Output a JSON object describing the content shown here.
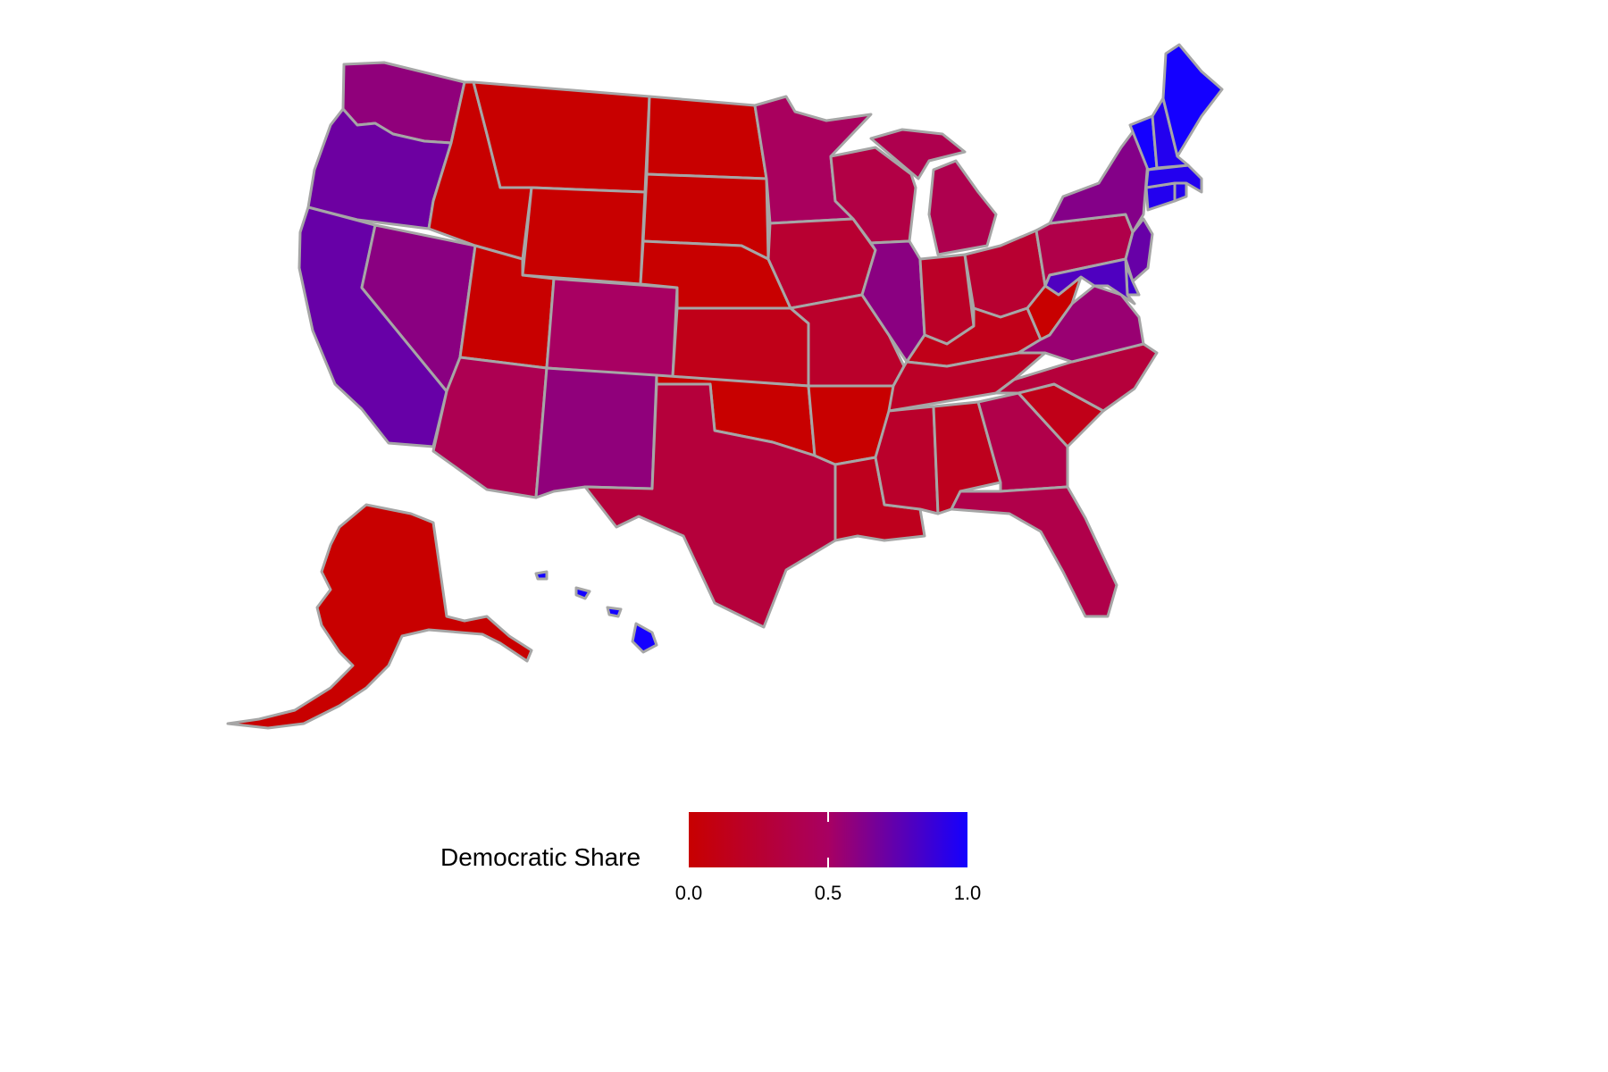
{
  "colors": {
    "low": "#c80000",
    "mid": "#a80062",
    "high": "#1400ff",
    "state_border": "#a6a6a6"
  },
  "legend": {
    "title": "Democratic Share",
    "ticks": [
      "0.0",
      "0.5",
      "1.0"
    ]
  },
  "scale": {
    "min": 0.0,
    "max": 1.0
  },
  "states": [
    {
      "name": "WA",
      "share": 0.58
    },
    {
      "name": "OR",
      "share": 0.7
    },
    {
      "name": "CA",
      "share": 0.72
    },
    {
      "name": "NV",
      "share": 0.6
    },
    {
      "name": "ID",
      "share": 0.0
    },
    {
      "name": "MT",
      "share": 0.0
    },
    {
      "name": "WY",
      "share": 0.0
    },
    {
      "name": "UT",
      "share": 0.0
    },
    {
      "name": "AZ",
      "share": 0.42
    },
    {
      "name": "CO",
      "share": 0.5
    },
    {
      "name": "NM",
      "share": 0.58
    },
    {
      "name": "ND",
      "share": 0.0
    },
    {
      "name": "SD",
      "share": 0.0
    },
    {
      "name": "NE",
      "share": 0.0
    },
    {
      "name": "KS",
      "share": 0.12
    },
    {
      "name": "OK",
      "share": 0.0
    },
    {
      "name": "TX",
      "share": 0.3
    },
    {
      "name": "MN",
      "share": 0.48
    },
    {
      "name": "IA",
      "share": 0.25
    },
    {
      "name": "MO",
      "share": 0.22
    },
    {
      "name": "AR",
      "share": 0.0
    },
    {
      "name": "LA",
      "share": 0.15
    },
    {
      "name": "WI",
      "share": 0.35
    },
    {
      "name": "IL",
      "share": 0.6
    },
    {
      "name": "MI",
      "share": 0.4
    },
    {
      "name": "IN",
      "share": 0.2
    },
    {
      "name": "OH",
      "share": 0.25
    },
    {
      "name": "KY",
      "share": 0.12
    },
    {
      "name": "TN",
      "share": 0.2
    },
    {
      "name": "MS",
      "share": 0.22
    },
    {
      "name": "AL",
      "share": 0.15
    },
    {
      "name": "GA",
      "share": 0.38
    },
    {
      "name": "FL",
      "share": 0.38
    },
    {
      "name": "SC",
      "share": 0.12
    },
    {
      "name": "NC",
      "share": 0.3
    },
    {
      "name": "VA",
      "share": 0.55
    },
    {
      "name": "WV",
      "share": 0.0
    },
    {
      "name": "PA",
      "share": 0.38
    },
    {
      "name": "NY",
      "share": 0.62
    },
    {
      "name": "NJ",
      "share": 0.72
    },
    {
      "name": "DE",
      "share": 0.85
    },
    {
      "name": "MD",
      "share": 0.8
    },
    {
      "name": "CT",
      "share": 0.95
    },
    {
      "name": "RI",
      "share": 0.95
    },
    {
      "name": "MA",
      "share": 0.95
    },
    {
      "name": "VT",
      "share": 1.0
    },
    {
      "name": "NH",
      "share": 0.95
    },
    {
      "name": "ME",
      "share": 1.0
    },
    {
      "name": "AK",
      "share": 0.0
    },
    {
      "name": "HI",
      "share": 1.0
    }
  ]
}
